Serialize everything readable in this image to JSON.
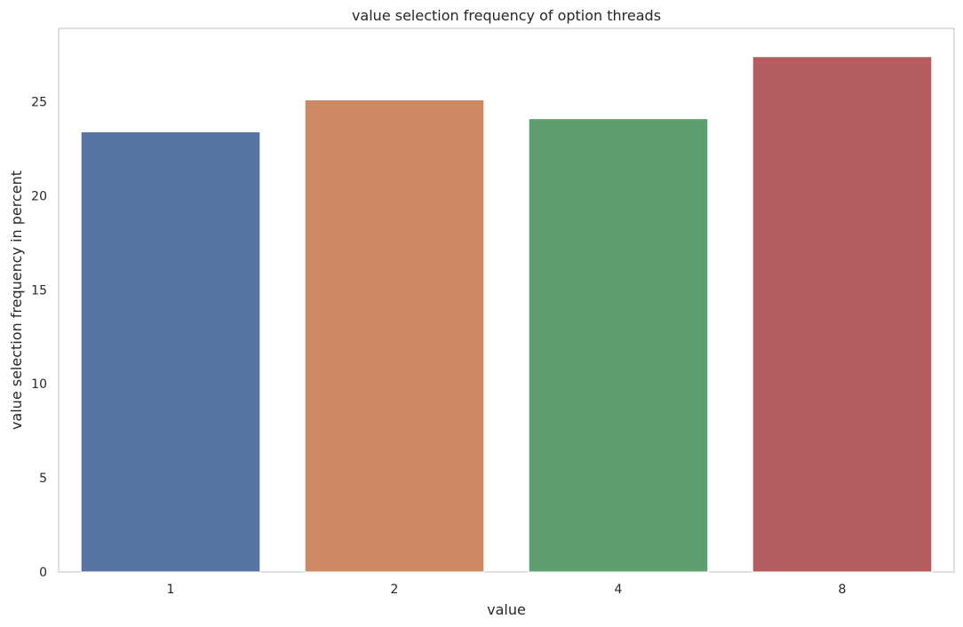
{
  "chart_data": {
    "type": "bar",
    "title": "value selection frequency of option threads",
    "xlabel": "value",
    "ylabel": "value selection frequency in percent",
    "categories": [
      "1",
      "2",
      "4",
      "8"
    ],
    "values": [
      23.4,
      25.1,
      24.1,
      27.4
    ],
    "colors": [
      "#5874a4",
      "#cc8964",
      "#5f9e6e",
      "#b55d60"
    ],
    "ylim": [
      0,
      28.9
    ],
    "yticks": [
      0,
      5,
      10,
      15,
      20,
      25
    ],
    "grid": false
  }
}
